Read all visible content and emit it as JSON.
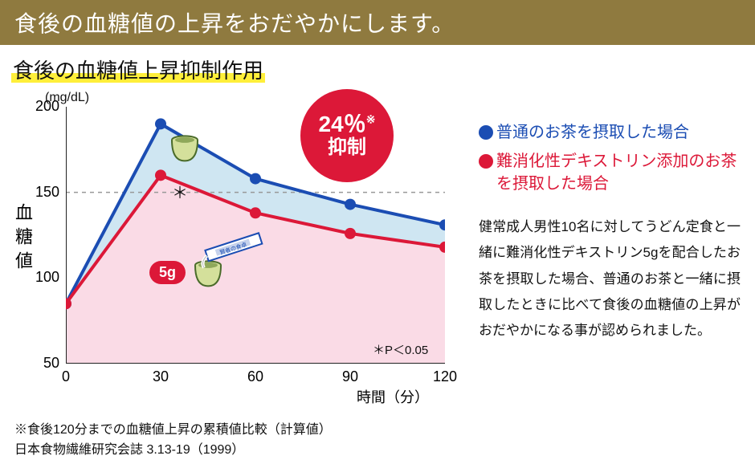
{
  "banner": "食後の血糖値の上昇をおだやかにします。",
  "subtitle": "食後の血糖値上昇抑制作用",
  "chart": {
    "type": "line",
    "y_unit": "(mg/dL)",
    "y_axis_label": "血糖値",
    "x_axis_label": "時間（分）",
    "ylim": [
      50,
      200
    ],
    "yticks": [
      50,
      100,
      150,
      200
    ],
    "xticks": [
      0,
      30,
      60,
      90,
      120
    ],
    "xlim": [
      0,
      120
    ],
    "blue_series": {
      "color": "#1b4db3",
      "fill": "#cfe6f2",
      "x": [
        0,
        30,
        60,
        90,
        120
      ],
      "y": [
        85,
        190,
        158,
        143,
        131
      ],
      "line_width": 4,
      "marker": "circle",
      "marker_size": 7
    },
    "red_series": {
      "color": "#dc1838",
      "fill": "#fadbe6",
      "x": [
        0,
        30,
        60,
        90,
        120
      ],
      "y": [
        85,
        160,
        138,
        126,
        118
      ],
      "line_width": 4,
      "marker": "circle",
      "marker_size": 7
    },
    "dashed_ref": {
      "y": 150,
      "color": "#999",
      "dash": "4 4"
    },
    "axis_color": "#222",
    "tick_fontsize": 18,
    "p_value": "＊P＜0.05",
    "asterisk": "＊"
  },
  "badge": {
    "top": "24％",
    "sup": "※",
    "bottom": "抑制",
    "bg": "#dc1838"
  },
  "pill5g": "5g",
  "legend": {
    "blue": {
      "color": "#1b4db3",
      "text": "普通のお茶を摂取した場合"
    },
    "red": {
      "color": "#dc1838",
      "text": "難消化性デキストリン添加のお茶を摂取した場合"
    }
  },
  "body_text": "健常成人男性10名に対してうどん定食と一緒に難消化性デキストリン5gを配合したお茶を摂取した場合、普通のお茶と一緒に摂取したときに比べて食後の血糖値の上昇がおだやかになる事が認められました。",
  "footnote_l1": "※食後120分までの血糖値上昇の累積値比較（計算値）",
  "footnote_l2": "日本食物繊維研究会誌 3.13-19（1999）",
  "cup_color": "#d4e09b",
  "cup_outline": "#4a6b2a"
}
